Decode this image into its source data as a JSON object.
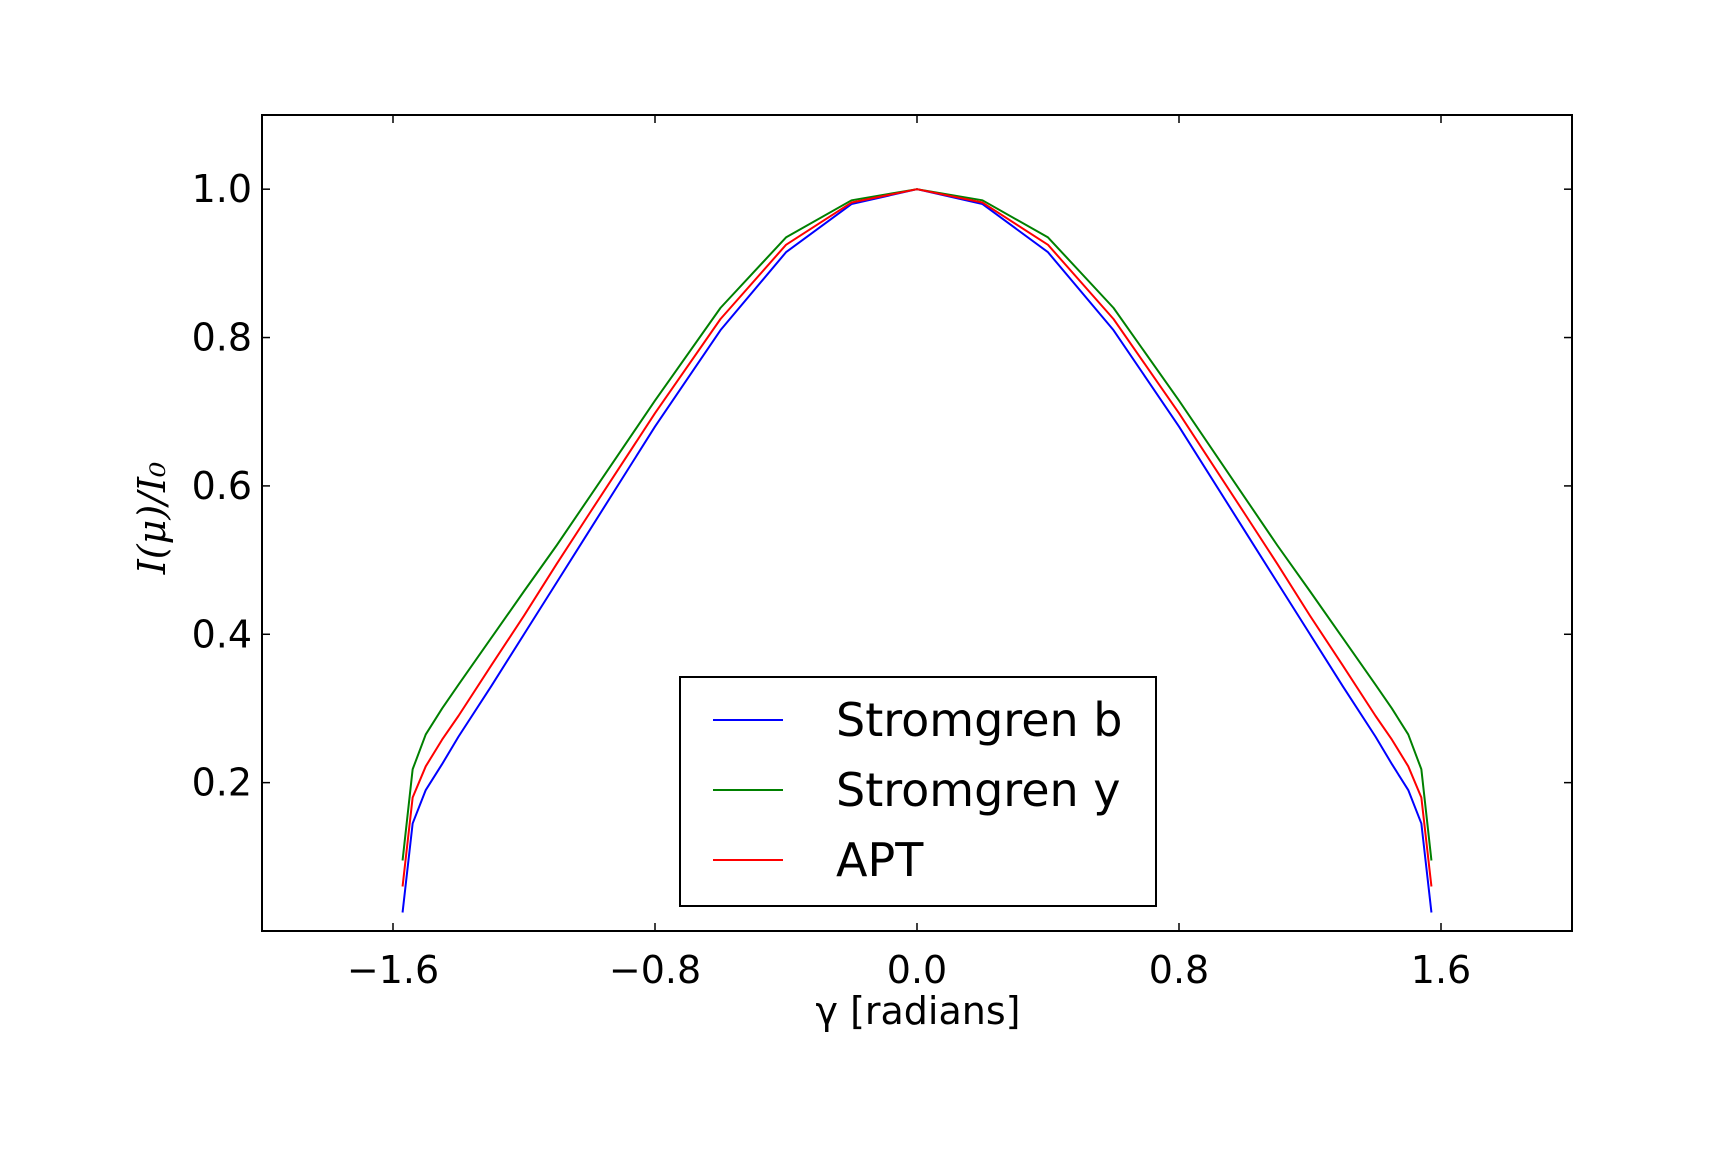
{
  "chart_data": {
    "type": "line",
    "xlabel": "γ [radians]",
    "ylabel": "I(μ)/I₀",
    "xlim": [
      -2.0,
      2.0
    ],
    "ylim": [
      0.0,
      1.1
    ],
    "xticks": [
      -1.6,
      -0.8,
      0.0,
      0.8,
      1.6
    ],
    "xtick_labels": [
      "−1.6",
      "−0.8",
      "0.0",
      "0.8",
      "1.6"
    ],
    "yticks": [
      0.2,
      0.4,
      0.6,
      0.8,
      1.0
    ],
    "ytick_labels": [
      "0.2",
      "0.4",
      "0.6",
      "0.8",
      "1.0"
    ],
    "grid": false,
    "legend_position": "lower-center",
    "series": [
      {
        "name": "Stromgren b",
        "color": "#0000ff",
        "x": [
          -1.5708,
          -1.54,
          -1.5,
          -1.45,
          -1.4,
          -1.3,
          -1.2,
          -1.1,
          -1.0,
          -0.8,
          -0.6,
          -0.4,
          -0.2,
          0.0,
          0.2,
          0.4,
          0.6,
          0.8,
          1.0,
          1.1,
          1.2,
          1.3,
          1.4,
          1.45,
          1.5,
          1.54,
          1.5708
        ],
        "y": [
          0.025,
          0.145,
          0.19,
          0.225,
          0.262,
          0.33,
          0.4,
          0.47,
          0.54,
          0.68,
          0.81,
          0.915,
          0.98,
          1.0,
          0.98,
          0.915,
          0.81,
          0.68,
          0.54,
          0.47,
          0.4,
          0.33,
          0.262,
          0.225,
          0.19,
          0.145,
          0.025
        ]
      },
      {
        "name": "Stromgren y",
        "color": "#008000",
        "x": [
          -1.5708,
          -1.54,
          -1.5,
          -1.45,
          -1.4,
          -1.3,
          -1.2,
          -1.1,
          -1.0,
          -0.8,
          -0.6,
          -0.4,
          -0.2,
          0.0,
          0.2,
          0.4,
          0.6,
          0.8,
          1.0,
          1.1,
          1.2,
          1.3,
          1.4,
          1.45,
          1.5,
          1.54,
          1.5708
        ],
        "y": [
          0.095,
          0.218,
          0.265,
          0.3,
          0.332,
          0.395,
          0.458,
          0.52,
          0.585,
          0.715,
          0.84,
          0.935,
          0.985,
          1.0,
          0.985,
          0.935,
          0.84,
          0.715,
          0.585,
          0.52,
          0.458,
          0.395,
          0.332,
          0.3,
          0.265,
          0.218,
          0.095
        ]
      },
      {
        "name": "APT",
        "color": "#ff0000",
        "x": [
          -1.5708,
          -1.54,
          -1.5,
          -1.45,
          -1.4,
          -1.3,
          -1.2,
          -1.1,
          -1.0,
          -0.8,
          -0.6,
          -0.4,
          -0.2,
          0.0,
          0.2,
          0.4,
          0.6,
          0.8,
          1.0,
          1.1,
          1.2,
          1.3,
          1.4,
          1.45,
          1.5,
          1.54,
          1.5708
        ],
        "y": [
          0.06,
          0.18,
          0.222,
          0.258,
          0.29,
          0.358,
          0.425,
          0.495,
          0.563,
          0.698,
          0.825,
          0.925,
          0.982,
          1.0,
          0.982,
          0.925,
          0.825,
          0.698,
          0.563,
          0.495,
          0.425,
          0.358,
          0.29,
          0.258,
          0.222,
          0.18,
          0.06
        ]
      }
    ]
  }
}
